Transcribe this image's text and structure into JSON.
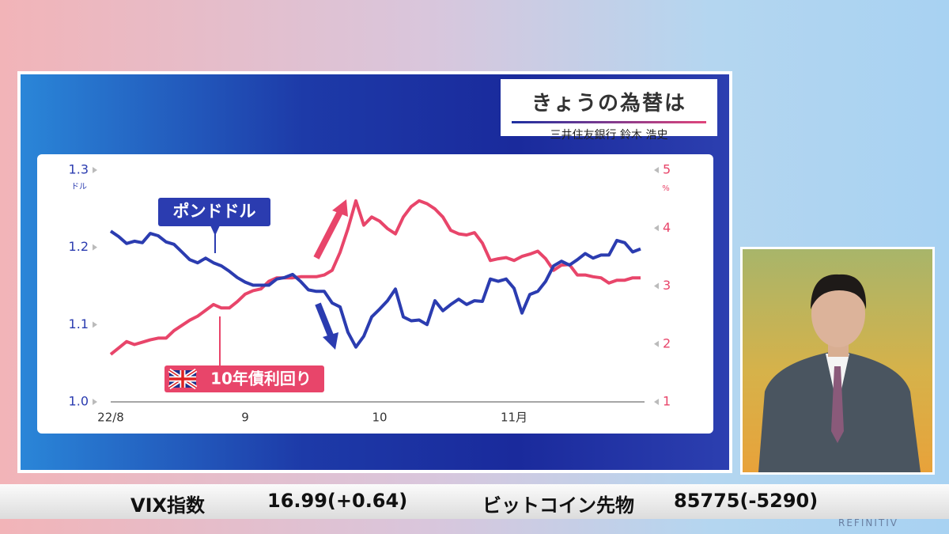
{
  "header": {
    "title": "きょうの為替は",
    "presenter": "三井住友銀行 鈴木 浩史"
  },
  "ticker": [
    {
      "label": "VIX指数",
      "value": "16.99(+0.64)"
    },
    {
      "label": "ビットコイン先物",
      "value": "85775(-5290)"
    }
  ],
  "brand": "REFINITIV",
  "chart_data": {
    "type": "line",
    "categories": [
      "22/8",
      null,
      null,
      null,
      null,
      null,
      null,
      null,
      null,
      null,
      null,
      null,
      null,
      null,
      null,
      null,
      null,
      "9",
      null,
      null,
      null,
      null,
      null,
      null,
      null,
      null,
      null,
      null,
      null,
      null,
      null,
      null,
      null,
      null,
      "10",
      null,
      null,
      null,
      null,
      null,
      null,
      null,
      null,
      null,
      null,
      null,
      null,
      null,
      null,
      null,
      null,
      "11月",
      null,
      null,
      null,
      null,
      null,
      null,
      null,
      null,
      null,
      null,
      null,
      null,
      null,
      null,
      null,
      null
    ],
    "ylabel": "ドル",
    "y2label": "%",
    "ylim": [
      1.0,
      1.3
    ],
    "yticks": [
      {
        "value": 1.0,
        "label": "1.0"
      },
      1.1,
      1.2,
      1.3
    ],
    "y2lim": [
      1,
      5
    ],
    "y2ticks": [
      1,
      2,
      3,
      4,
      5
    ],
    "series": [
      {
        "name": "ポンドドル",
        "color": "#2b3cb0",
        "values": [
          1.221,
          1.214,
          1.205,
          1.208,
          1.206,
          1.218,
          1.215,
          1.207,
          1.204,
          1.194,
          1.184,
          1.18,
          1.186,
          1.18,
          1.176,
          1.169,
          1.161,
          1.155,
          1.151,
          1.151,
          1.151,
          1.159,
          1.161,
          1.165,
          1.156,
          1.145,
          1.143,
          1.143,
          1.128,
          1.123,
          1.09,
          1.071,
          1.085,
          1.11,
          1.12,
          1.131,
          1.146,
          1.11,
          1.105,
          1.106,
          1.1,
          1.131,
          1.118,
          1.126,
          1.133,
          1.126,
          1.131,
          1.13,
          1.159,
          1.156,
          1.159,
          1.147,
          1.115,
          1.139,
          1.143,
          1.156,
          1.176,
          1.182,
          1.177,
          1.184,
          1.192,
          1.186,
          1.19,
          1.19,
          1.209,
          1.206,
          1.194,
          1.198
        ]
      },
      {
        "name": "10年債利回り",
        "color": "#e8456a",
        "axis": "y2",
        "values": [
          1.82,
          1.93,
          2.04,
          1.99,
          2.03,
          2.07,
          2.1,
          2.1,
          2.23,
          2.32,
          2.41,
          2.48,
          2.58,
          2.68,
          2.62,
          2.62,
          2.73,
          2.86,
          2.92,
          2.95,
          3.08,
          3.14,
          3.14,
          3.14,
          3.16,
          3.16,
          3.16,
          3.19,
          3.27,
          3.58,
          3.99,
          4.47,
          4.05,
          4.19,
          4.12,
          3.99,
          3.9,
          4.19,
          4.37,
          4.47,
          4.42,
          4.33,
          4.19,
          3.96,
          3.9,
          3.88,
          3.92,
          3.74,
          3.44,
          3.47,
          3.49,
          3.44,
          3.51,
          3.55,
          3.6,
          3.47,
          3.27,
          3.36,
          3.37,
          3.19,
          3.19,
          3.16,
          3.14,
          3.05,
          3.1,
          3.1,
          3.14,
          3.14
        ]
      }
    ]
  }
}
